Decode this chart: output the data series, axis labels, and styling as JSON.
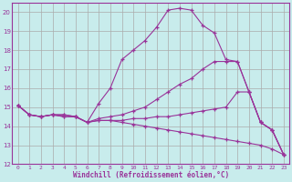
{
  "xlabel": "Windchill (Refroidissement éolien,°C)",
  "background_color": "#c8ecec",
  "line_color": "#993399",
  "grid_color": "#aaaaaa",
  "xlim": [
    -0.5,
    23.5
  ],
  "ylim": [
    12,
    20.5
  ],
  "xticks": [
    0,
    1,
    2,
    3,
    4,
    5,
    6,
    7,
    8,
    9,
    10,
    11,
    12,
    13,
    14,
    15,
    16,
    17,
    18,
    19,
    20,
    21,
    22,
    23
  ],
  "yticks": [
    12,
    13,
    14,
    15,
    16,
    17,
    18,
    19,
    20
  ],
  "lines": [
    {
      "x": [
        0,
        1,
        2,
        3,
        4,
        5,
        6,
        7,
        8,
        9,
        10,
        11,
        12,
        13,
        14,
        15,
        16,
        17,
        18,
        19,
        20,
        21,
        22,
        23
      ],
      "y": [
        15.1,
        14.6,
        14.5,
        14.6,
        14.6,
        14.5,
        14.2,
        15.2,
        16.0,
        17.5,
        18.0,
        18.5,
        19.2,
        20.1,
        20.2,
        20.1,
        19.3,
        18.9,
        17.5,
        17.4,
        15.8,
        14.2,
        13.8,
        12.5
      ]
    },
    {
      "x": [
        0,
        1,
        2,
        3,
        4,
        5,
        6,
        7,
        8,
        9,
        10,
        11,
        12,
        13,
        14,
        15,
        16,
        17,
        18,
        19,
        20,
        21,
        22,
        23
      ],
      "y": [
        15.1,
        14.6,
        14.5,
        14.6,
        14.6,
        14.5,
        14.2,
        14.4,
        14.5,
        14.6,
        14.8,
        15.0,
        15.4,
        15.8,
        16.2,
        16.5,
        17.0,
        17.4,
        17.4,
        17.4,
        15.8,
        14.2,
        13.8,
        12.5
      ]
    },
    {
      "x": [
        0,
        1,
        2,
        3,
        4,
        5,
        6,
        7,
        8,
        9,
        10,
        11,
        12,
        13,
        14,
        15,
        16,
        17,
        18,
        19,
        20,
        21,
        22,
        23
      ],
      "y": [
        15.1,
        14.6,
        14.5,
        14.6,
        14.5,
        14.5,
        14.2,
        14.3,
        14.3,
        14.3,
        14.4,
        14.4,
        14.5,
        14.5,
        14.6,
        14.7,
        14.8,
        14.9,
        15.0,
        15.8,
        15.8,
        14.2,
        13.8,
        12.5
      ]
    },
    {
      "x": [
        0,
        1,
        2,
        3,
        4,
        5,
        6,
        7,
        8,
        9,
        10,
        11,
        12,
        13,
        14,
        15,
        16,
        17,
        18,
        19,
        20,
        21,
        22,
        23
      ],
      "y": [
        15.1,
        14.6,
        14.5,
        14.6,
        14.5,
        14.5,
        14.2,
        14.3,
        14.3,
        14.2,
        14.1,
        14.0,
        13.9,
        13.8,
        13.7,
        13.6,
        13.5,
        13.4,
        13.3,
        13.2,
        13.1,
        13.0,
        12.8,
        12.5
      ]
    }
  ]
}
